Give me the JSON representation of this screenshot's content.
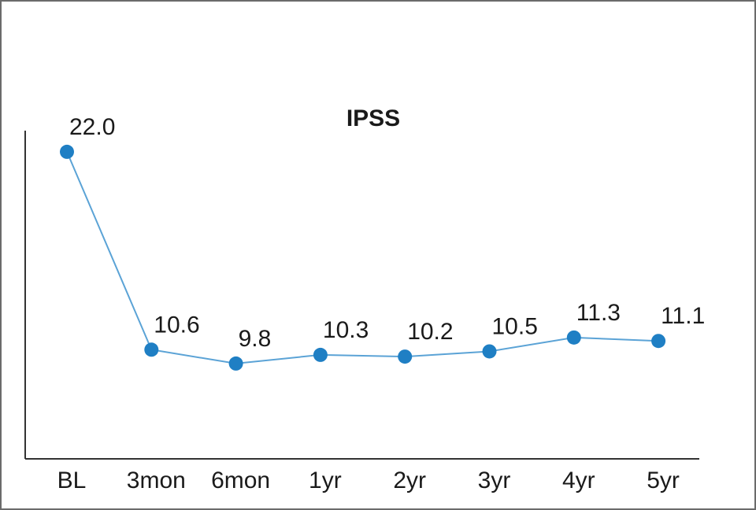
{
  "chart_data": {
    "type": "line",
    "title": "IPSS",
    "xlabel": "",
    "ylabel": "",
    "categories": [
      "BL",
      "3mon",
      "6mon",
      "1yr",
      "2yr",
      "3yr",
      "4yr",
      "5yr"
    ],
    "series": [
      {
        "values": [
          22.0,
          10.6,
          9.8,
          10.3,
          10.2,
          10.5,
          11.3,
          11.1
        ],
        "labels": [
          "22.0",
          "10.6",
          "9.8",
          "10.3",
          "10.2",
          "10.5",
          "11.3",
          "11.1"
        ],
        "color": "#1f7fc4",
        "line_color": "#5ba3d6"
      }
    ],
    "ylim": [
      0,
      26
    ],
    "grid": false,
    "legend": "none",
    "axis_color": "#333333"
  }
}
